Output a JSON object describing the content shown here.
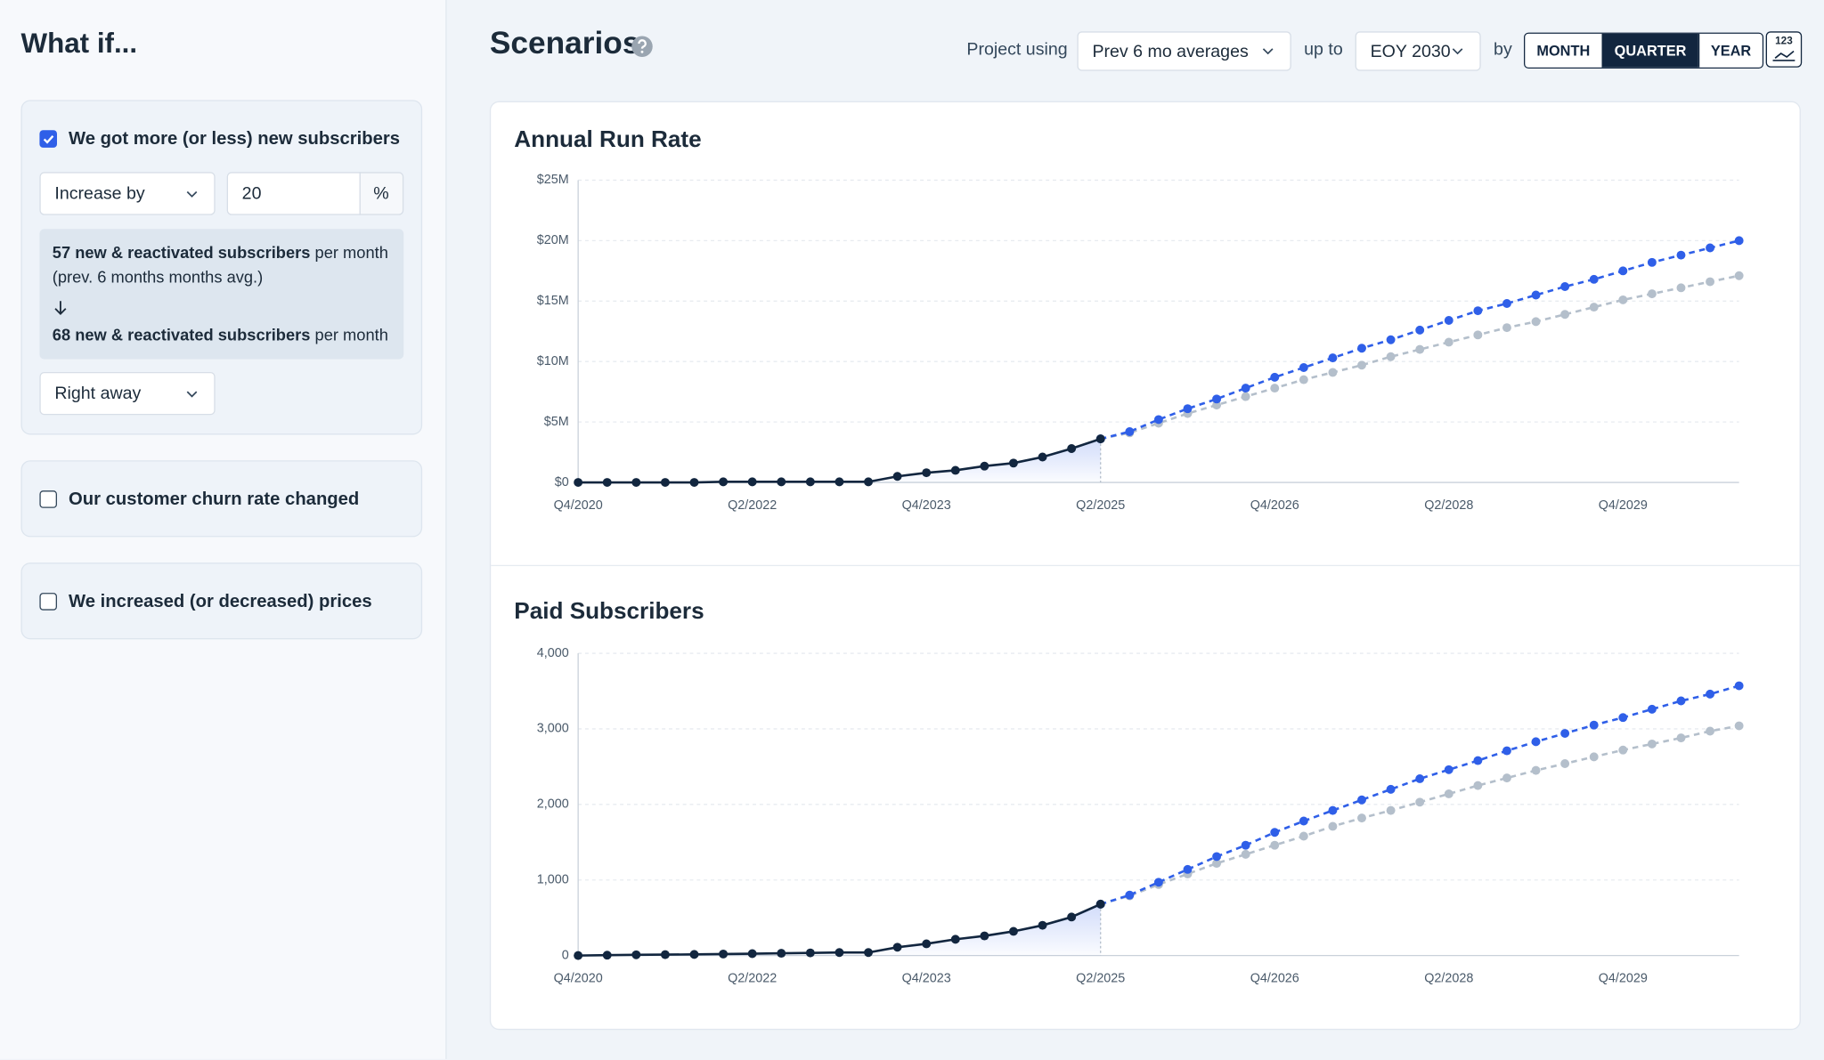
{
  "sidebar": {
    "title": "What if...",
    "scenario_1": {
      "label": "We got more (or less) new subscribers",
      "checked": true,
      "mode": "Increase by",
      "amount": 20,
      "unit": "%",
      "summary_before_bold": "57 new & reactivated subscribers",
      "summary_before_rest": "per month (prev. 6 months months avg.)",
      "summary_after_bold": "68 new & reactivated subscribers",
      "summary_after_rest": "per month",
      "timing": "Right away"
    },
    "scenario_2": {
      "label": "Our customer churn rate changed",
      "checked": false
    },
    "scenario_3": {
      "label": "We increased (or decreased) prices",
      "checked": false
    }
  },
  "header": {
    "title": "Scenarios",
    "project_label": "Project using",
    "method": "Prev 6 mo averages",
    "upto_label": "up to",
    "horizon": "EOY 2030",
    "by_label": "by",
    "periods": [
      "MONTH",
      "QUARTER",
      "YEAR"
    ],
    "selected_period": "QUARTER",
    "icon_label": "123"
  },
  "chart_data": [
    {
      "type": "line",
      "title": "Annual Run Rate",
      "categories": [
        "Q4/2020",
        null,
        null,
        null,
        null,
        null,
        "Q2/2022",
        null,
        null,
        null,
        null,
        null,
        "Q4/2023",
        null,
        null,
        null,
        null,
        null,
        "Q2/2025",
        null,
        null,
        null,
        null,
        null,
        "Q4/2026",
        null,
        null,
        null,
        null,
        null,
        "Q2/2028",
        null,
        null,
        null,
        null,
        null,
        "Q4/2029",
        null,
        null,
        null,
        null
      ],
      "series": [
        {
          "color": "#12263f",
          "dashed": false,
          "values": [
            0,
            0,
            0,
            0,
            0,
            0.05,
            0.05,
            0.05,
            0.05,
            0.05,
            0.05,
            0.5,
            0.8,
            1.0,
            1.35,
            1.6,
            2.1,
            2.8,
            3.6,
            null,
            null,
            null,
            null,
            null,
            null,
            null,
            null,
            null,
            null,
            null,
            null,
            null,
            null,
            null,
            null,
            null,
            null,
            null,
            null,
            null,
            null
          ]
        },
        {
          "color": "#2f5fe8",
          "dashed": true,
          "values": [
            null,
            null,
            null,
            null,
            null,
            null,
            null,
            null,
            null,
            null,
            null,
            null,
            null,
            null,
            null,
            null,
            null,
            null,
            3.6,
            4.2,
            5.2,
            6.1,
            6.9,
            7.8,
            8.7,
            9.5,
            10.3,
            11.1,
            11.8,
            12.6,
            13.4,
            14.2,
            14.8,
            15.5,
            16.2,
            16.8,
            17.5,
            18.2,
            18.8,
            19.4,
            20.0
          ]
        },
        {
          "color": "#b4bfcb",
          "dashed": true,
          "values": [
            null,
            null,
            null,
            null,
            null,
            null,
            null,
            null,
            null,
            null,
            null,
            null,
            null,
            null,
            null,
            null,
            null,
            null,
            3.6,
            4.1,
            4.9,
            5.7,
            6.4,
            7.1,
            7.8,
            8.5,
            9.1,
            9.7,
            10.4,
            11.0,
            11.6,
            12.2,
            12.8,
            13.3,
            13.9,
            14.5,
            15.1,
            15.6,
            16.1,
            16.6,
            17.1
          ]
        }
      ],
      "ylim": [
        0,
        25
      ],
      "yticks": [
        {
          "value": 0,
          "label": "$0"
        },
        {
          "value": 5,
          "label": "$5M"
        },
        {
          "value": 10,
          "label": "$10M"
        },
        {
          "value": 15,
          "label": "$15M"
        },
        {
          "value": 20,
          "label": "$20M"
        },
        {
          "value": 25,
          "label": "$25M"
        }
      ],
      "grid": true
    },
    {
      "type": "line",
      "title": "Paid Subscribers",
      "categories": [
        "Q4/2020",
        null,
        null,
        null,
        null,
        null,
        "Q2/2022",
        null,
        null,
        null,
        null,
        null,
        "Q4/2023",
        null,
        null,
        null,
        null,
        null,
        "Q2/2025",
        null,
        null,
        null,
        null,
        null,
        "Q4/2026",
        null,
        null,
        null,
        null,
        null,
        "Q2/2028",
        null,
        null,
        null,
        null,
        null,
        "Q4/2029",
        null,
        null,
        null,
        null
      ],
      "series": [
        {
          "color": "#12263f",
          "dashed": false,
          "values": [
            0,
            5,
            10,
            12,
            15,
            20,
            25,
            30,
            35,
            40,
            40,
            110,
            155,
            215,
            260,
            320,
            400,
            510,
            680,
            null,
            null,
            null,
            null,
            null,
            null,
            null,
            null,
            null,
            null,
            null,
            null,
            null,
            null,
            null,
            null,
            null,
            null,
            null,
            null,
            null,
            null
          ]
        },
        {
          "color": "#2f5fe8",
          "dashed": true,
          "values": [
            null,
            null,
            null,
            null,
            null,
            null,
            null,
            null,
            null,
            null,
            null,
            null,
            null,
            null,
            null,
            null,
            null,
            null,
            680,
            800,
            970,
            1140,
            1310,
            1460,
            1630,
            1780,
            1920,
            2060,
            2200,
            2340,
            2460,
            2580,
            2710,
            2830,
            2940,
            3050,
            3150,
            3260,
            3370,
            3460,
            3570
          ]
        },
        {
          "color": "#b4bfcb",
          "dashed": true,
          "values": [
            null,
            null,
            null,
            null,
            null,
            null,
            null,
            null,
            null,
            null,
            null,
            null,
            null,
            null,
            null,
            null,
            null,
            null,
            680,
            790,
            940,
            1080,
            1220,
            1340,
            1460,
            1580,
            1710,
            1820,
            1920,
            2030,
            2140,
            2250,
            2350,
            2450,
            2540,
            2630,
            2720,
            2800,
            2880,
            2970,
            3040
          ]
        }
      ],
      "ylim": [
        0,
        4000
      ],
      "yticks": [
        0,
        {
          "value": 1000,
          "label": "1,000"
        },
        {
          "value": 2000,
          "label": "2,000"
        },
        {
          "value": 3000,
          "label": "3,000"
        },
        {
          "value": 4000,
          "label": "4,000"
        }
      ],
      "grid": true
    }
  ]
}
